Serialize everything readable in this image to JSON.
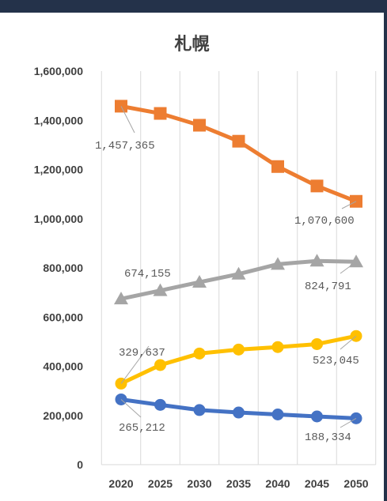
{
  "chart_data": {
    "type": "line",
    "title": "札幌",
    "xlabel": "",
    "ylabel": "",
    "ylim": [
      0,
      1600000
    ],
    "yticks": [
      0,
      200000,
      400000,
      600000,
      800000,
      1000000,
      1200000,
      1400000,
      1600000
    ],
    "ytick_labels": [
      "0",
      "200,000",
      "400,000",
      "600,000",
      "800,000",
      "1,000,000",
      "1,200,000",
      "1,400,000",
      "1,600,000"
    ],
    "categories": [
      "2020",
      "2025",
      "2030",
      "2035",
      "2040",
      "2045",
      "2050"
    ],
    "grid": "vertical",
    "legend": "none",
    "series": [
      {
        "color": "#ED7D31",
        "marker": "square",
        "values": [
          1457365,
          1428000,
          1380000,
          1315000,
          1212000,
          1133000,
          1070600
        ],
        "start_label": "1,457,365",
        "end_label": "1,070,600"
      },
      {
        "color": "#A5A5A5",
        "marker": "triangle",
        "values": [
          674155,
          708000,
          742000,
          775000,
          815000,
          828000,
          824791
        ],
        "start_label": "674,155",
        "end_label": "824,791"
      },
      {
        "color": "#FFC000",
        "marker": "circle",
        "values": [
          329637,
          405000,
          452000,
          468000,
          478000,
          490000,
          523045
        ],
        "start_label": "329,637",
        "end_label": "523,045"
      },
      {
        "color": "#4472C4",
        "marker": "circle",
        "values": [
          265212,
          243000,
          222000,
          212000,
          204000,
          196000,
          188334
        ],
        "start_label": "265,212",
        "end_label": "188,334"
      }
    ]
  }
}
